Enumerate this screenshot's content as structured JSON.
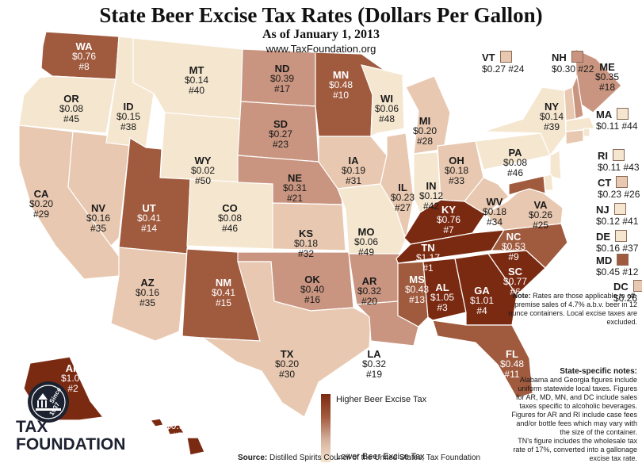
{
  "title": "State Beer Excise Tax Rates (Dollars Per Gallon)",
  "subtitle": "As of January 1, 2013",
  "url": "www.TaxFoundation.org",
  "colors": {
    "rank_1_7": "#7b2a12",
    "rank_8_15": "#a05a3e",
    "rank_16_23": "#c99580",
    "rank_24_35": "#e8c8b0",
    "rank_36_50": "#f5e6cf",
    "border": "#ffffff"
  },
  "states": [
    {
      "abbr": "WA",
      "rate": "$0.76",
      "rank": "#8"
    },
    {
      "abbr": "OR",
      "rate": "$0.08",
      "rank": "#45"
    },
    {
      "abbr": "CA",
      "rate": "$0.20",
      "rank": "#29"
    },
    {
      "abbr": "NV",
      "rate": "$0.16",
      "rank": "#35"
    },
    {
      "abbr": "ID",
      "rate": "$0.15",
      "rank": "#38"
    },
    {
      "abbr": "MT",
      "rate": "$0.14",
      "rank": "#40"
    },
    {
      "abbr": "WY",
      "rate": "$0.02",
      "rank": "#50"
    },
    {
      "abbr": "UT",
      "rate": "$0.41",
      "rank": "#14"
    },
    {
      "abbr": "AZ",
      "rate": "$0.16",
      "rank": "#35"
    },
    {
      "abbr": "CO",
      "rate": "$0.08",
      "rank": "#46"
    },
    {
      "abbr": "NM",
      "rate": "$0.41",
      "rank": "#15"
    },
    {
      "abbr": "ND",
      "rate": "$0.39",
      "rank": "#17"
    },
    {
      "abbr": "SD",
      "rate": "$0.27",
      "rank": "#23"
    },
    {
      "abbr": "NE",
      "rate": "$0.31",
      "rank": "#21"
    },
    {
      "abbr": "KS",
      "rate": "$0.18",
      "rank": "#32"
    },
    {
      "abbr": "OK",
      "rate": "$0.40",
      "rank": "#16"
    },
    {
      "abbr": "TX",
      "rate": "$0.20",
      "rank": "#30"
    },
    {
      "abbr": "MN",
      "rate": "$0.48",
      "rank": "#10"
    },
    {
      "abbr": "IA",
      "rate": "$0.19",
      "rank": "#31"
    },
    {
      "abbr": "MO",
      "rate": "$0.06",
      "rank": "#49"
    },
    {
      "abbr": "AR",
      "rate": "$0.32",
      "rank": "#20"
    },
    {
      "abbr": "LA",
      "rate": "$0.32",
      "rank": "#19"
    },
    {
      "abbr": "WI",
      "rate": "$0.06",
      "rank": "#48"
    },
    {
      "abbr": "IL",
      "rate": "$0.23",
      "rank": "#27"
    },
    {
      "abbr": "MI",
      "rate": "$0.20",
      "rank": "#28"
    },
    {
      "abbr": "IN",
      "rate": "$0.12",
      "rank": "#42"
    },
    {
      "abbr": "OH",
      "rate": "$0.18",
      "rank": "#33"
    },
    {
      "abbr": "KY",
      "rate": "$0.76",
      "rank": "#7"
    },
    {
      "abbr": "TN",
      "rate": "$1.17",
      "rank": "#1"
    },
    {
      "abbr": "MS",
      "rate": "$0.43",
      "rank": "#13"
    },
    {
      "abbr": "AL",
      "rate": "$1.05",
      "rank": "#3"
    },
    {
      "abbr": "GA",
      "rate": "$1.01",
      "rank": "#4"
    },
    {
      "abbr": "FL",
      "rate": "$0.48",
      "rank": "#11"
    },
    {
      "abbr": "SC",
      "rate": "$0.77",
      "rank": "#6"
    },
    {
      "abbr": "NC",
      "rate": "$0.53",
      "rank": "#9"
    },
    {
      "abbr": "VA",
      "rate": "$0.26",
      "rank": "#25"
    },
    {
      "abbr": "WV",
      "rate": "$0.18",
      "rank": "#34"
    },
    {
      "abbr": "PA",
      "rate": "$0.08",
      "rank": "#46"
    },
    {
      "abbr": "NY",
      "rate": "$0.14",
      "rank": "#39"
    },
    {
      "abbr": "ME",
      "rate": "$0.35",
      "rank": "#18"
    },
    {
      "abbr": "AK",
      "rate": "$1.07",
      "rank": "#2"
    },
    {
      "abbr": "HI",
      "rate": "$0.93",
      "rank": "#5"
    }
  ],
  "northeast": [
    {
      "abbr": "VT",
      "rate": "$0.27",
      "rank": "#24"
    },
    {
      "abbr": "NH",
      "rate": "$0.30",
      "rank": "#22"
    },
    {
      "abbr": "MA",
      "rate": "$0.11",
      "rank": "#44"
    },
    {
      "abbr": "RI",
      "rate": "$0.11",
      "rank": "#43"
    },
    {
      "abbr": "CT",
      "rate": "$0.23",
      "rank": "#26"
    },
    {
      "abbr": "NJ",
      "rate": "$0.12",
      "rank": "#41"
    },
    {
      "abbr": "DE",
      "rate": "$0.16",
      "rank": "#37"
    },
    {
      "abbr": "MD",
      "rate": "$0.45",
      "rank": "#12"
    },
    {
      "abbr": "DC",
      "rate": "$0.26",
      "rank": ""
    }
  ],
  "legend": {
    "high": "Higher Beer Excise Tax",
    "low": "Lower Beer Excise Tax"
  },
  "note": {
    "label": "Note:",
    "text": " Rates are those applicable to off-premise sales of 4.7% a.b.v. beer in 12 ounce containers. Local excise taxes are excluded."
  },
  "specific": {
    "heading": "State-specific notes:",
    "text1": "Alabama and Georgia figures include uniform statewide local taxes. Figures for AR, MD, MN, and DC include sales taxes specific to alcoholic beverages. Figures for AR and RI include case fees and/or bottle fees which may vary with the size of the container.",
    "text2": "TN's figure includes the wholesale tax rate of 17%, converted into a gallonage excise tax rate."
  },
  "source": {
    "label": "Source:",
    "text": " Distilled Spirits Council of the United States; Tax Foundation"
  },
  "logo": {
    "line1": "TAX",
    "line2": "FOUNDATION",
    "badge_since": "Since",
    "badge_year": "1937"
  }
}
